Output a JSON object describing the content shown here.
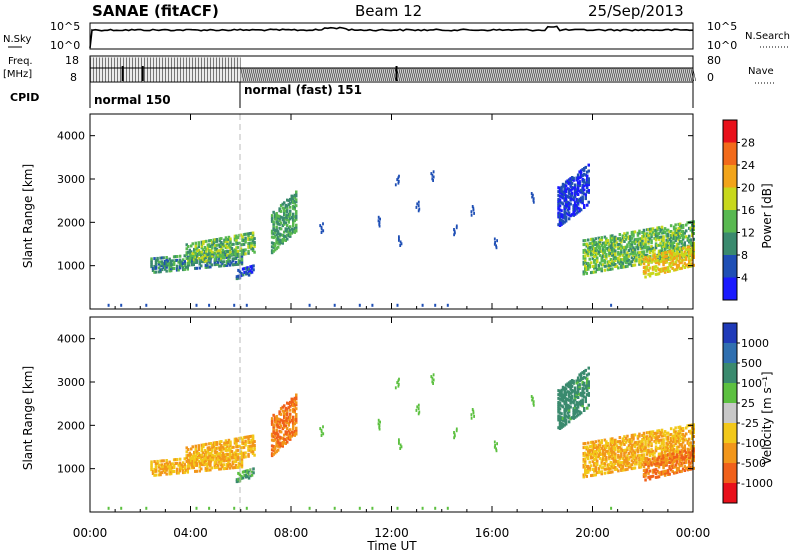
{
  "header": {
    "title": "SANAE (fitACF)",
    "beam": "Beam 12",
    "date": "25/Sep/2013"
  },
  "time_axis": {
    "label": "Time UT",
    "ticks": [
      "00:00",
      "04:00",
      "08:00",
      "12:00",
      "16:00",
      "20:00",
      "00:00"
    ]
  },
  "noise_panel": {
    "left_label": "N.Sky",
    "right_label": "N.Search",
    "left_ticks": [
      "10^5",
      "10^0"
    ],
    "right_ticks": [
      "10^5",
      "10^0"
    ]
  },
  "freq_panel": {
    "left_label_1": "Freq.",
    "left_label_2": "[MHz]",
    "right_label": "Nave",
    "left_ticks": [
      "18",
      "8"
    ],
    "right_ticks": [
      "80",
      "0"
    ]
  },
  "cpid_panel": {
    "label": "CPID",
    "modes": [
      {
        "name": "normal 150",
        "start_hour": 0,
        "end_hour": 6
      },
      {
        "name": "normal (fast) 151",
        "start_hour": 6,
        "end_hour": 24
      }
    ]
  },
  "power_panel": {
    "ylabel": "Slant Range [km]",
    "yticks": [
      1000,
      2000,
      3000,
      4000
    ],
    "colorbar_label": "Power [dB]",
    "colorbar_ticks": [
      "4",
      "8",
      "12",
      "16",
      "20",
      "24",
      "28"
    ],
    "colors": [
      "#1a1aff",
      "#1f4fb5",
      "#3a8a6e",
      "#58b850",
      "#c8d81c",
      "#f2a41a",
      "#f26a1a",
      "#e8101a"
    ]
  },
  "velocity_panel": {
    "ylabel": "Slant Range [km]",
    "yticks": [
      1000,
      2000,
      3000,
      4000
    ],
    "colorbar_label": "Velocity [m s⁻¹]",
    "colorbar_ticks": [
      "1000",
      "500",
      "100",
      "25",
      "-25",
      "-100",
      "-500",
      "-1000"
    ],
    "colors": [
      "#1f3ab8",
      "#2f6fb0",
      "#3a8a6e",
      "#5cc040",
      "#c8c8c8",
      "#f2c81a",
      "#f2961a",
      "#f0601a",
      "#e8101a"
    ]
  },
  "chart_data": [
    {
      "type": "heatmap",
      "title": "Power [dB]",
      "xlabel": "Time UT",
      "ylabel": "Slant Range [km]",
      "xlim": [
        0,
        24
      ],
      "ylim": [
        0,
        4500
      ],
      "x_unit": "hours UT",
      "clim": [
        0,
        32
      ],
      "echo_regions": [
        {
          "t0": 2.4,
          "t1": 6.0,
          "r0": 900,
          "r1": 1400,
          "power": 10
        },
        {
          "t0": 3.8,
          "t1": 6.5,
          "r0": 1100,
          "r1": 1800,
          "power": 14
        },
        {
          "t0": 5.8,
          "t1": 6.5,
          "r0": 750,
          "r1": 1050,
          "power": 6
        },
        {
          "t0": 7.2,
          "t1": 8.2,
          "r0": 1400,
          "r1": 2700,
          "power": 12
        },
        {
          "t0": 18.6,
          "t1": 19.8,
          "r0": 2000,
          "r1": 3300,
          "power": 4
        },
        {
          "t0": 19.6,
          "t1": 24.0,
          "r0": 900,
          "r1": 2000,
          "power": 14
        },
        {
          "t0": 22.0,
          "t1": 24.0,
          "r0": 800,
          "r1": 1500,
          "power": 20
        }
      ]
    },
    {
      "type": "heatmap",
      "title": "Velocity [m s⁻¹]",
      "xlabel": "Time UT",
      "ylabel": "Slant Range [km]",
      "xlim": [
        0,
        24
      ],
      "ylim": [
        0,
        4500
      ],
      "x_unit": "hours UT",
      "clim": [
        -1000,
        1000
      ],
      "echo_regions": [
        {
          "t0": 2.4,
          "t1": 6.0,
          "r0": 900,
          "r1": 1400,
          "velocity": -100
        },
        {
          "t0": 3.8,
          "t1": 6.5,
          "r0": 1100,
          "r1": 1800,
          "velocity": -100
        },
        {
          "t0": 5.8,
          "t1": 6.5,
          "r0": 750,
          "r1": 1050,
          "velocity": 25
        },
        {
          "t0": 7.2,
          "t1": 8.2,
          "r0": 1400,
          "r1": 2700,
          "velocity": -500
        },
        {
          "t0": 18.6,
          "t1": 19.8,
          "r0": 2000,
          "r1": 3300,
          "velocity": 50
        },
        {
          "t0": 19.6,
          "t1": 24.0,
          "r0": 900,
          "r1": 2000,
          "velocity": -100
        },
        {
          "t0": 22.0,
          "t1": 24.0,
          "r0": 800,
          "r1": 1500,
          "velocity": -500
        }
      ]
    }
  ]
}
